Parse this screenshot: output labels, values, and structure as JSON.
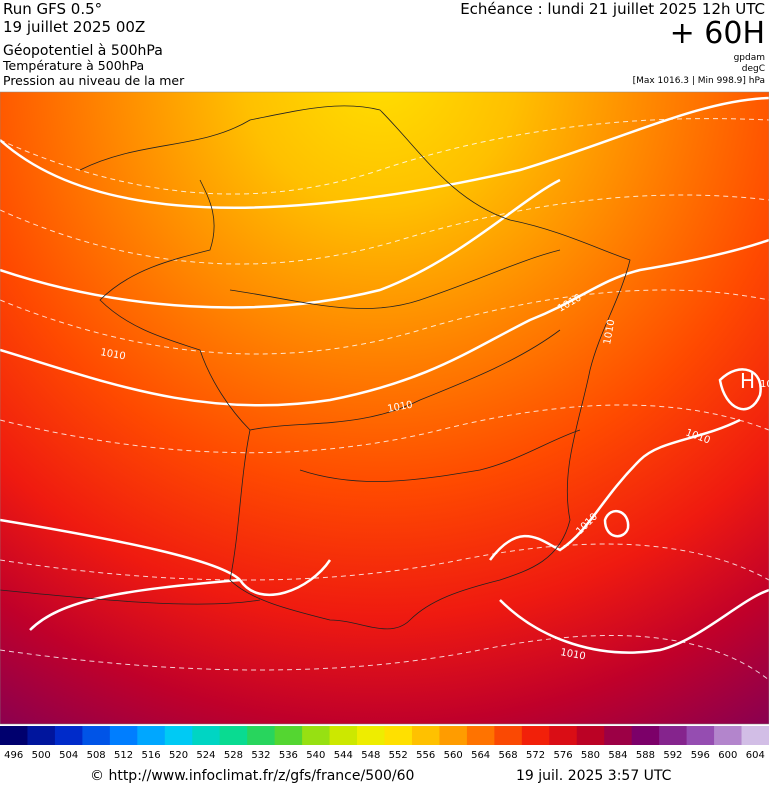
{
  "header": {
    "run": "Run GFS 0.5°",
    "run_date": "19 juillet 2025 00Z",
    "field_1": "Géopotentiel à 500hPa",
    "field_2": "Température à 500hPa",
    "field_3": "Pression au niveau de la mer",
    "valid": "Echéance : lundi 21 juillet 2025 12h UTC",
    "lead": "+ 60H",
    "unit_1": "gpdam",
    "unit_2": "degC",
    "range": "[Max 1016.3 | Min 998.9] hPa"
  },
  "map": {
    "contour_labels": [
      "1010",
      "1010",
      "1010",
      "1010",
      "1010",
      "1010",
      "1010",
      "10"
    ],
    "high_label": "H"
  },
  "legend": {
    "ticks": [
      496,
      500,
      504,
      508,
      512,
      516,
      520,
      524,
      528,
      532,
      536,
      540,
      544,
      548,
      552,
      556,
      560,
      564,
      568,
      572,
      576,
      580,
      584,
      588,
      592,
      596,
      600,
      604
    ]
  },
  "footer": {
    "source": "© http://www.infoclimat.fr/z/gfs/france/500/60",
    "generated": "19 juil. 2025  3:57 UTC"
  }
}
